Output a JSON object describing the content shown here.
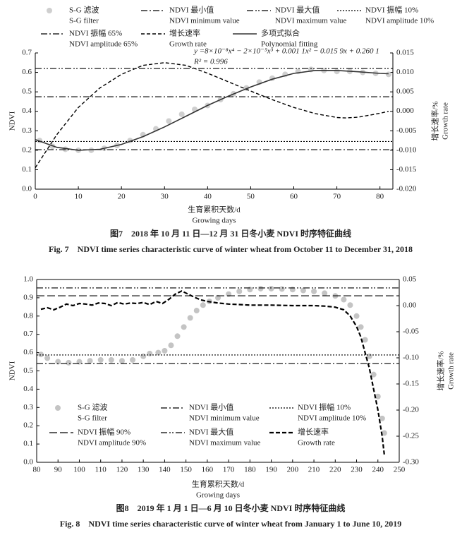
{
  "chart_data": [
    {
      "type": "line",
      "caption": "图7　2018 年 10 月 11 日—12 月 31 日冬小麦 NDVI 时序特征曲线",
      "caption_en": "Fig. 7　NDVI time series characteristic curve of winter wheat from October 11 to December 31, 2018",
      "x_label": "生育累积天数/d",
      "x_label_en": "Growing days",
      "y_label": "NDVI",
      "y2_label": "增长速率/%",
      "y2_label_en": "Growth rate",
      "annotations": [
        "y =8×10⁻⁸x⁴ − 2×10⁻⁵x³ + 0.001 1x² − 0.015 9x + 0.260 1",
        "R² = 0.996"
      ],
      "frame": "open",
      "xlim": [
        0,
        83
      ],
      "xticks": [
        0,
        10,
        20,
        30,
        40,
        50,
        60,
        70,
        80
      ],
      "ylim": [
        0,
        0.7
      ],
      "yticks": [
        {
          "value": 0,
          "label": "0.0"
        },
        0.1,
        0.2,
        0.3,
        0.4,
        0.5,
        0.6,
        0.7
      ],
      "y2lim": [
        -0.02,
        0.015
      ],
      "y2ticks": [
        {
          "value": -0.02,
          "label": "-0.020"
        },
        -0.015,
        {
          "value": -0.01,
          "label": "-0.010"
        },
        -0.005,
        {
          "value": 0,
          "label": "0.000"
        },
        0.005,
        {
          "value": 0.01,
          "label": "0.010"
        },
        0.015
      ],
      "series": [
        {
          "name": "S-G 滤波",
          "name_en": "S-G filter",
          "kind": "points",
          "color": "#cfcfcf",
          "x": [
            1,
            4,
            7,
            10,
            13,
            16,
            19,
            22,
            25,
            28,
            31,
            34,
            37,
            40,
            43,
            46,
            49,
            52,
            55,
            58,
            61,
            64,
            67,
            70,
            73,
            76,
            79,
            82
          ],
          "values": [
            0.25,
            0.22,
            0.205,
            0.2,
            0.2,
            0.21,
            0.225,
            0.25,
            0.28,
            0.31,
            0.35,
            0.385,
            0.41,
            0.43,
            0.46,
            0.49,
            0.52,
            0.55,
            0.57,
            0.59,
            0.605,
            0.615,
            0.61,
            0.605,
            0.605,
            0.6,
            0.595,
            0.59
          ]
        },
        {
          "name": "NDVI 最小值",
          "name_en": "NDVI minimum value",
          "kind": "hline",
          "color": "#000000",
          "line_style": "dashdot",
          "value": 0.203
        },
        {
          "name": "NDVI 最大值",
          "name_en": "NDVI maximum value",
          "kind": "hline",
          "color": "#000000",
          "line_style": "dashdotdot",
          "value": 0.62
        },
        {
          "name": "NDVI 振幅 10%",
          "name_en": "NDVI amplitude 10%",
          "kind": "hline",
          "color": "#000000",
          "line_style": "dotted",
          "value": 0.245
        },
        {
          "name": "NDVI 振幅 65%",
          "name_en": "NDVI amplitude 65%",
          "kind": "hline",
          "color": "#000000",
          "line_style": "dashdot",
          "value": 0.475
        },
        {
          "name": "增长速率",
          "name_en": "Growth rate",
          "kind": "line",
          "axis": "y2",
          "color": "#000000",
          "line_style": "dashed",
          "x": [
            0,
            5,
            10,
            15,
            20,
            25,
            30,
            35,
            40,
            45,
            50,
            55,
            60,
            65,
            70,
            72,
            75,
            80,
            82
          ],
          "values": [
            -0.0145,
            -0.006,
            0.001,
            0.006,
            0.0095,
            0.0118,
            0.0125,
            0.0118,
            0.0098,
            0.0075,
            0.0052,
            0.003,
            0.001,
            -0.0006,
            -0.0016,
            -0.0017,
            -0.0015,
            -0.0005,
            0.0
          ]
        },
        {
          "name": "多项式拟合",
          "name_en": "Polynomial fitting",
          "kind": "line",
          "color": "#333333",
          "line_style": "solid",
          "x": [
            0,
            5,
            10,
            15,
            20,
            25,
            30,
            35,
            40,
            45,
            50,
            55,
            60,
            65,
            70,
            75,
            80,
            82
          ],
          "values": [
            0.255,
            0.215,
            0.2,
            0.205,
            0.23,
            0.27,
            0.32,
            0.375,
            0.43,
            0.48,
            0.525,
            0.565,
            0.595,
            0.61,
            0.61,
            0.603,
            0.595,
            0.593
          ]
        }
      ]
    },
    {
      "type": "line",
      "caption": "图8　2019 年 1 月 1 日—6 月 10 日冬小麦 NDVI 时序特征曲线",
      "caption_en": "Fig. 8　NDVI time series characteristic curve of winter wheat from January 1 to June 10, 2019",
      "x_label": "生育累积天数/d",
      "x_label_en": "Growing days",
      "y_label": "NDVI",
      "y2_label": "增长速率/%",
      "y2_label_en": "Growth rate",
      "annotations": [],
      "frame": "box",
      "xlim": [
        80,
        250
      ],
      "xticks": [
        80,
        90,
        100,
        110,
        120,
        130,
        140,
        150,
        160,
        170,
        180,
        190,
        200,
        210,
        220,
        230,
        240,
        250
      ],
      "ylim": [
        0,
        1
      ],
      "yticks": [
        {
          "value": 0,
          "label": "0.0"
        },
        0.1,
        0.2,
        0.3,
        0.4,
        0.5,
        0.6,
        0.7,
        0.8,
        0.9,
        {
          "value": 1,
          "label": "1.0"
        }
      ],
      "y2lim": [
        -0.3,
        0.05
      ],
      "y2ticks": [
        {
          "value": -0.3,
          "label": "-0.30"
        },
        -0.25,
        {
          "value": -0.2,
          "label": "-0.20"
        },
        -0.15,
        {
          "value": -0.1,
          "label": "-0.10"
        },
        -0.05,
        {
          "value": 0,
          "label": "0.00"
        },
        0.05
      ],
      "series": [
        {
          "name": "S-G 滤波",
          "name_en": "S-G filter",
          "kind": "points",
          "color": "#c4c4c4",
          "x": [
            82,
            85,
            90,
            95,
            100,
            105,
            110,
            115,
            120,
            125,
            130,
            133,
            137,
            140,
            143,
            146,
            149,
            152,
            155,
            158,
            161,
            165,
            170,
            175,
            180,
            185,
            190,
            195,
            200,
            205,
            210,
            215,
            220,
            224,
            227,
            230,
            232,
            234,
            236,
            238,
            240,
            242,
            243
          ],
          "values": [
            0.59,
            0.57,
            0.55,
            0.545,
            0.55,
            0.555,
            0.56,
            0.56,
            0.555,
            0.56,
            0.58,
            0.595,
            0.6,
            0.61,
            0.64,
            0.69,
            0.74,
            0.79,
            0.83,
            0.86,
            0.88,
            0.9,
            0.92,
            0.935,
            0.945,
            0.95,
            0.95,
            0.948,
            0.945,
            0.94,
            0.935,
            0.925,
            0.91,
            0.89,
            0.86,
            0.8,
            0.74,
            0.67,
            0.58,
            0.48,
            0.36,
            0.24,
            0.16
          ]
        },
        {
          "name": "NDVI 最小值",
          "name_en": "NDVI minimum value",
          "kind": "hline",
          "color": "#000000",
          "line_style": "dashdot",
          "value": 0.54
        },
        {
          "name": "NDVI 振幅 10%",
          "name_en": "NDVI amplitude 10%",
          "kind": "hline",
          "color": "#000000",
          "line_style": "dotted",
          "value": 0.587
        },
        {
          "name": "NDVI 振幅 90%",
          "name_en": "NDVI amplitude 90%",
          "kind": "hline",
          "color": "#000000",
          "line_style": "longdash",
          "value": 0.911
        },
        {
          "name": "NDVI 最大值",
          "name_en": "NDVI maximum value",
          "kind": "hline",
          "color": "#000000",
          "line_style": "dashdotdot",
          "value": 0.954
        },
        {
          "name": "增长速率",
          "name_en": "Growth rate",
          "kind": "line",
          "axis": "y2",
          "color": "#000000",
          "line_style": "heavydashed",
          "x": [
            82,
            85,
            88,
            91,
            94,
            97,
            100,
            103,
            106,
            109,
            112,
            115,
            118,
            121,
            124,
            127,
            130,
            133,
            136,
            139,
            142,
            145,
            148,
            151,
            154,
            157,
            160,
            165,
            170,
            175,
            180,
            190,
            200,
            210,
            215,
            220,
            224,
            227,
            230,
            232,
            234,
            236,
            238,
            240,
            242,
            243
          ],
          "values": [
            -0.007,
            -0.004,
            -0.008,
            -0.003,
            0.003,
            0.0,
            0.004,
            0.003,
            0.001,
            0.005,
            0.004,
            0.0,
            0.006,
            0.003,
            0.005,
            0.004,
            0.006,
            0.002,
            0.008,
            0.004,
            0.012,
            0.022,
            0.028,
            0.022,
            0.016,
            0.011,
            0.008,
            0.005,
            0.003,
            0.002,
            0.001,
            0.001,
            0.0,
            0.0,
            -0.001,
            -0.003,
            -0.008,
            -0.02,
            -0.04,
            -0.06,
            -0.09,
            -0.12,
            -0.16,
            -0.2,
            -0.25,
            -0.285
          ]
        }
      ]
    }
  ]
}
